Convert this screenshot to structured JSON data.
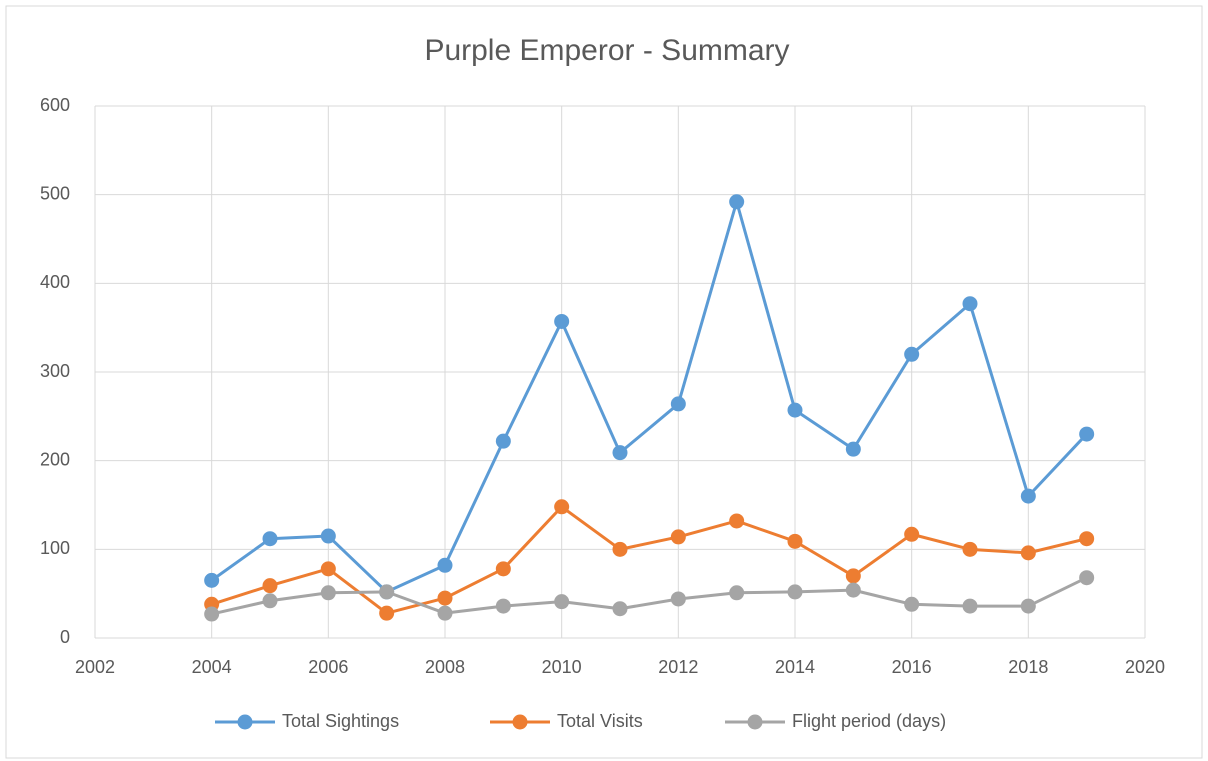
{
  "chart_data": {
    "type": "line",
    "title": "Purple Emperor - Summary",
    "x": [
      2004,
      2005,
      2006,
      2007,
      2008,
      2009,
      2010,
      2011,
      2012,
      2013,
      2014,
      2015,
      2016,
      2017,
      2018,
      2019
    ],
    "series": [
      {
        "name": "Total Sightings",
        "color": "#5b9bd5",
        "values": [
          65,
          112,
          115,
          52,
          82,
          222,
          357,
          209,
          264,
          492,
          257,
          213,
          320,
          377,
          160,
          230
        ]
      },
      {
        "name": "Total Visits",
        "color": "#ed7d31",
        "values": [
          38,
          59,
          78,
          28,
          45,
          78,
          148,
          100,
          114,
          132,
          109,
          70,
          117,
          100,
          96,
          112
        ]
      },
      {
        "name": "Flight period (days)",
        "color": "#a5a5a5",
        "values": [
          27,
          42,
          51,
          52,
          28,
          36,
          41,
          33,
          44,
          51,
          52,
          54,
          38,
          36,
          36,
          68
        ]
      }
    ],
    "xlim": [
      2002,
      2020
    ],
    "xticks": [
      2002,
      2004,
      2006,
      2008,
      2010,
      2012,
      2014,
      2016,
      2018,
      2020
    ],
    "ylim": [
      0,
      600
    ],
    "yticks": [
      0,
      100,
      200,
      300,
      400,
      500,
      600
    ],
    "grid": true,
    "legend": "bottom"
  }
}
